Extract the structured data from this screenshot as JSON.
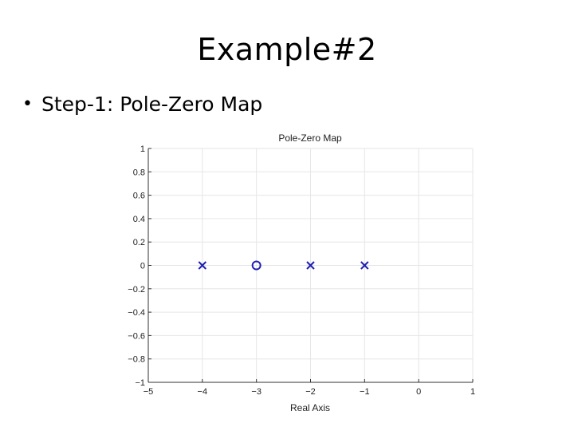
{
  "slide": {
    "title": "Example#2",
    "bullet": "Step-1: Pole-Zero Map"
  },
  "chart_data": {
    "type": "scatter",
    "title": "Pole-Zero Map",
    "xlabel": "Real Axis",
    "ylabel": "",
    "xlim": [
      -5,
      1
    ],
    "ylim": [
      -1,
      1
    ],
    "xticks": [
      -5,
      -4,
      -3,
      -2,
      -1,
      0,
      1
    ],
    "yticks": [
      1,
      0.8,
      0.6,
      0.4,
      0.2,
      0,
      -0.2,
      -0.4,
      -0.6,
      -0.8,
      -1
    ],
    "xtick_labels": [
      "−5",
      "−4",
      "−3",
      "−2",
      "−1",
      "0",
      "1"
    ],
    "ytick_labels": [
      "1",
      "0.8",
      "0.6",
      "0.4",
      "0.2",
      "0",
      "−0.2",
      "−0.4",
      "−0.6",
      "−0.8",
      "−1"
    ],
    "grid": true,
    "marker_color": "#1f1fb4",
    "poles": [
      {
        "x": -4,
        "y": 0
      },
      {
        "x": -2,
        "y": 0
      },
      {
        "x": -1,
        "y": 0
      }
    ],
    "zeros": [
      {
        "x": -3,
        "y": 0
      }
    ]
  }
}
